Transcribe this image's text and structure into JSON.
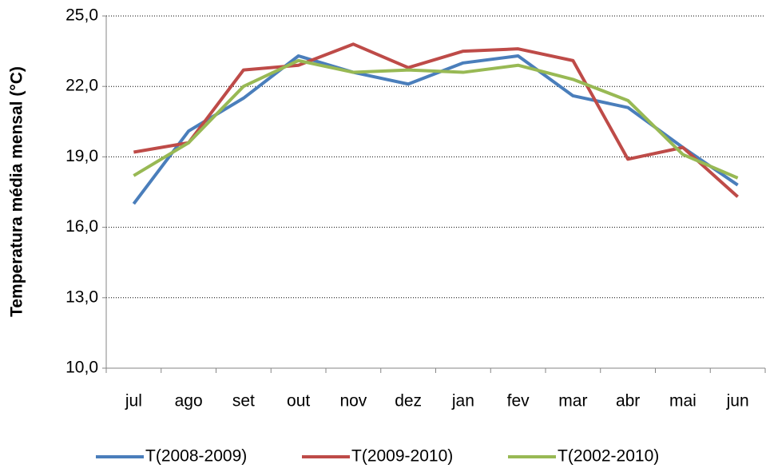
{
  "chart_data": {
    "type": "line",
    "y_label": "Temperatura média mensal (°C)",
    "categories": [
      "jul",
      "ago",
      "set",
      "out",
      "nov",
      "dez",
      "jan",
      "fev",
      "mar",
      "abr",
      "mai",
      "jun"
    ],
    "series": [
      {
        "name": "T(2008-2009)",
        "color": "#4a7ebb",
        "values": [
          17.0,
          20.1,
          21.5,
          23.3,
          22.6,
          22.1,
          23.0,
          23.3,
          21.6,
          21.1,
          19.4,
          17.8
        ]
      },
      {
        "name": "T(2009-2010)",
        "color": "#be4b48",
        "values": [
          19.2,
          19.6,
          22.7,
          22.9,
          23.8,
          22.8,
          23.5,
          23.6,
          23.1,
          18.9,
          19.4,
          17.3
        ]
      },
      {
        "name": "T(2002-2010)",
        "color": "#98b954",
        "values": [
          18.2,
          19.6,
          22.0,
          23.1,
          22.6,
          22.7,
          22.6,
          22.9,
          22.3,
          21.4,
          19.1,
          18.1
        ]
      }
    ],
    "ylim": [
      10,
      25
    ],
    "yticks": [
      {
        "value": 10,
        "label": "10,0"
      },
      {
        "value": 13,
        "label": "13,0"
      },
      {
        "value": 16,
        "label": "16,0"
      },
      {
        "value": 19,
        "label": "19,0"
      },
      {
        "value": 22,
        "label": "22,0"
      },
      {
        "value": 25,
        "label": "25,0"
      }
    ],
    "grid": true,
    "legend": "bottom"
  }
}
